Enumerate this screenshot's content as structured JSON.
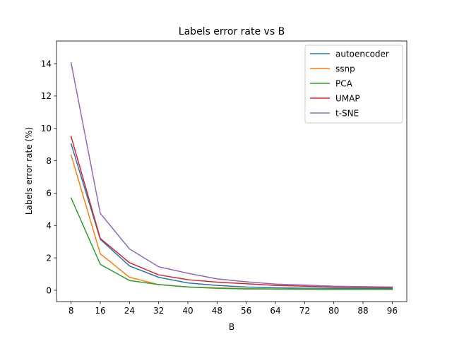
{
  "chart_data": {
    "type": "line",
    "title": "Labels error rate vs B",
    "xlabel": "B",
    "ylabel": "Labels error rate (%)",
    "x": [
      8,
      16,
      24,
      32,
      40,
      48,
      56,
      64,
      72,
      80,
      88,
      96
    ],
    "xticks": [
      8,
      16,
      24,
      32,
      40,
      48,
      56,
      64,
      72,
      80,
      88,
      96
    ],
    "yticks": [
      0,
      2,
      4,
      6,
      8,
      10,
      12,
      14
    ],
    "xlim": [
      4.0,
      100.0
    ],
    "ylim": [
      -0.7,
      15.4
    ],
    "grid": false,
    "legend_position": "top-right",
    "series": [
      {
        "name": "autoencoder",
        "color": "#1f77b4",
        "values": [
          9.05,
          3.15,
          1.5,
          0.8,
          0.45,
          0.3,
          0.2,
          0.15,
          0.13,
          0.12,
          0.11,
          0.1
        ]
      },
      {
        "name": "ssnp",
        "color": "#ff7f0e",
        "values": [
          8.35,
          2.25,
          0.8,
          0.35,
          0.2,
          0.15,
          0.1,
          0.08,
          0.07,
          0.06,
          0.06,
          0.05
        ]
      },
      {
        "name": "PCA",
        "color": "#2ca02c",
        "values": [
          5.7,
          1.6,
          0.6,
          0.35,
          0.2,
          0.12,
          0.08,
          0.07,
          0.06,
          0.05,
          0.05,
          0.05
        ]
      },
      {
        "name": "UMAP",
        "color": "#d62728",
        "values": [
          9.5,
          3.2,
          1.7,
          0.95,
          0.65,
          0.5,
          0.4,
          0.3,
          0.25,
          0.2,
          0.18,
          0.15
        ]
      },
      {
        "name": "t-SNE",
        "color": "#9467bd",
        "values": [
          14.05,
          4.75,
          2.55,
          1.45,
          1.05,
          0.7,
          0.52,
          0.38,
          0.32,
          0.25,
          0.22,
          0.2
        ]
      }
    ]
  }
}
